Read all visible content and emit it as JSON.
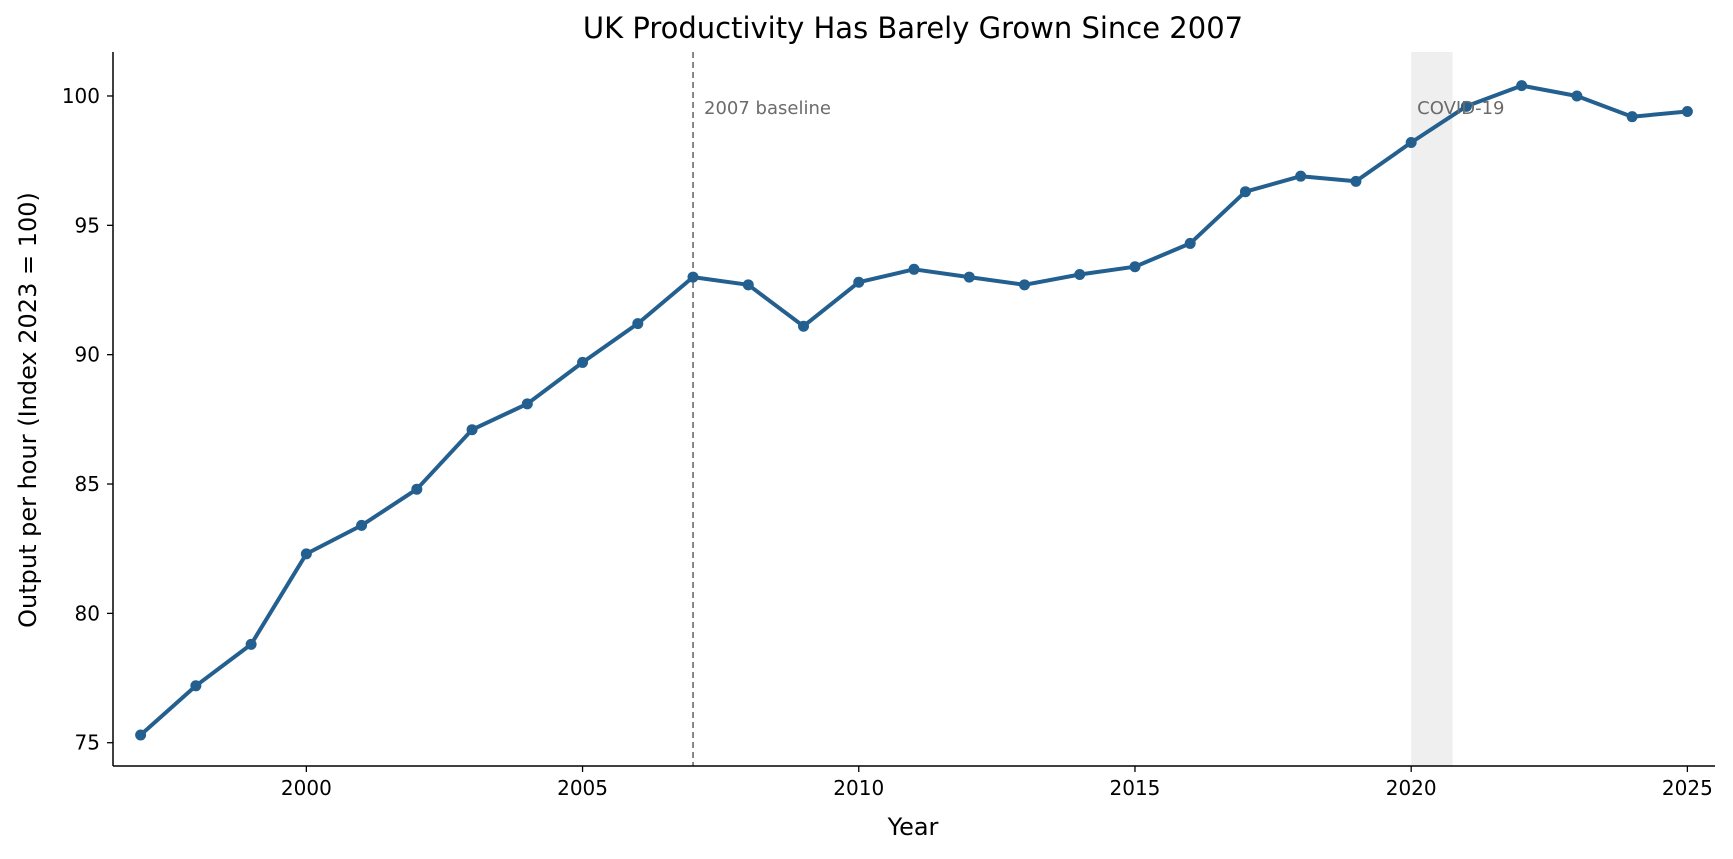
{
  "chart_data": {
    "type": "line",
    "title": "UK Productivity Has Barely Grown Since 2007",
    "xlabel": "Year",
    "ylabel": "Output per hour (Index 2023 = 100)",
    "xlim": [
      1996.5,
      2025.5
    ],
    "ylim": [
      74.1,
      101.7
    ],
    "x_ticks": [
      2000,
      2005,
      2010,
      2015,
      2020,
      2025
    ],
    "y_ticks": [
      75,
      80,
      85,
      90,
      95,
      100
    ],
    "grid": false,
    "color": "#23608f",
    "series": [
      {
        "x": [
          1997,
          1998,
          1999,
          2000,
          2001,
          2002,
          2003,
          2004,
          2005,
          2006,
          2007,
          2008,
          2009,
          2010,
          2011,
          2012,
          2013,
          2014,
          2015,
          2016,
          2017,
          2018,
          2019,
          2020,
          2021,
          2022,
          2023,
          2024,
          2025
        ],
        "values": [
          75.3,
          77.2,
          78.8,
          82.3,
          83.4,
          84.8,
          87.1,
          88.1,
          89.7,
          91.2,
          93.0,
          92.7,
          91.1,
          92.8,
          93.3,
          93.0,
          92.7,
          93.1,
          93.4,
          94.3,
          96.3,
          96.9,
          96.7,
          98.2,
          99.6,
          100.4,
          100.0,
          99.2,
          99.4
        ]
      }
    ],
    "annotations": {
      "baseline": {
        "x": 2007,
        "label": "2007 baseline",
        "color": "#6b6b6b"
      },
      "shaded": {
        "x_from": 2020,
        "x_to": 2020.75,
        "label": "COVID-19",
        "color": "#e6e6e6"
      }
    }
  }
}
